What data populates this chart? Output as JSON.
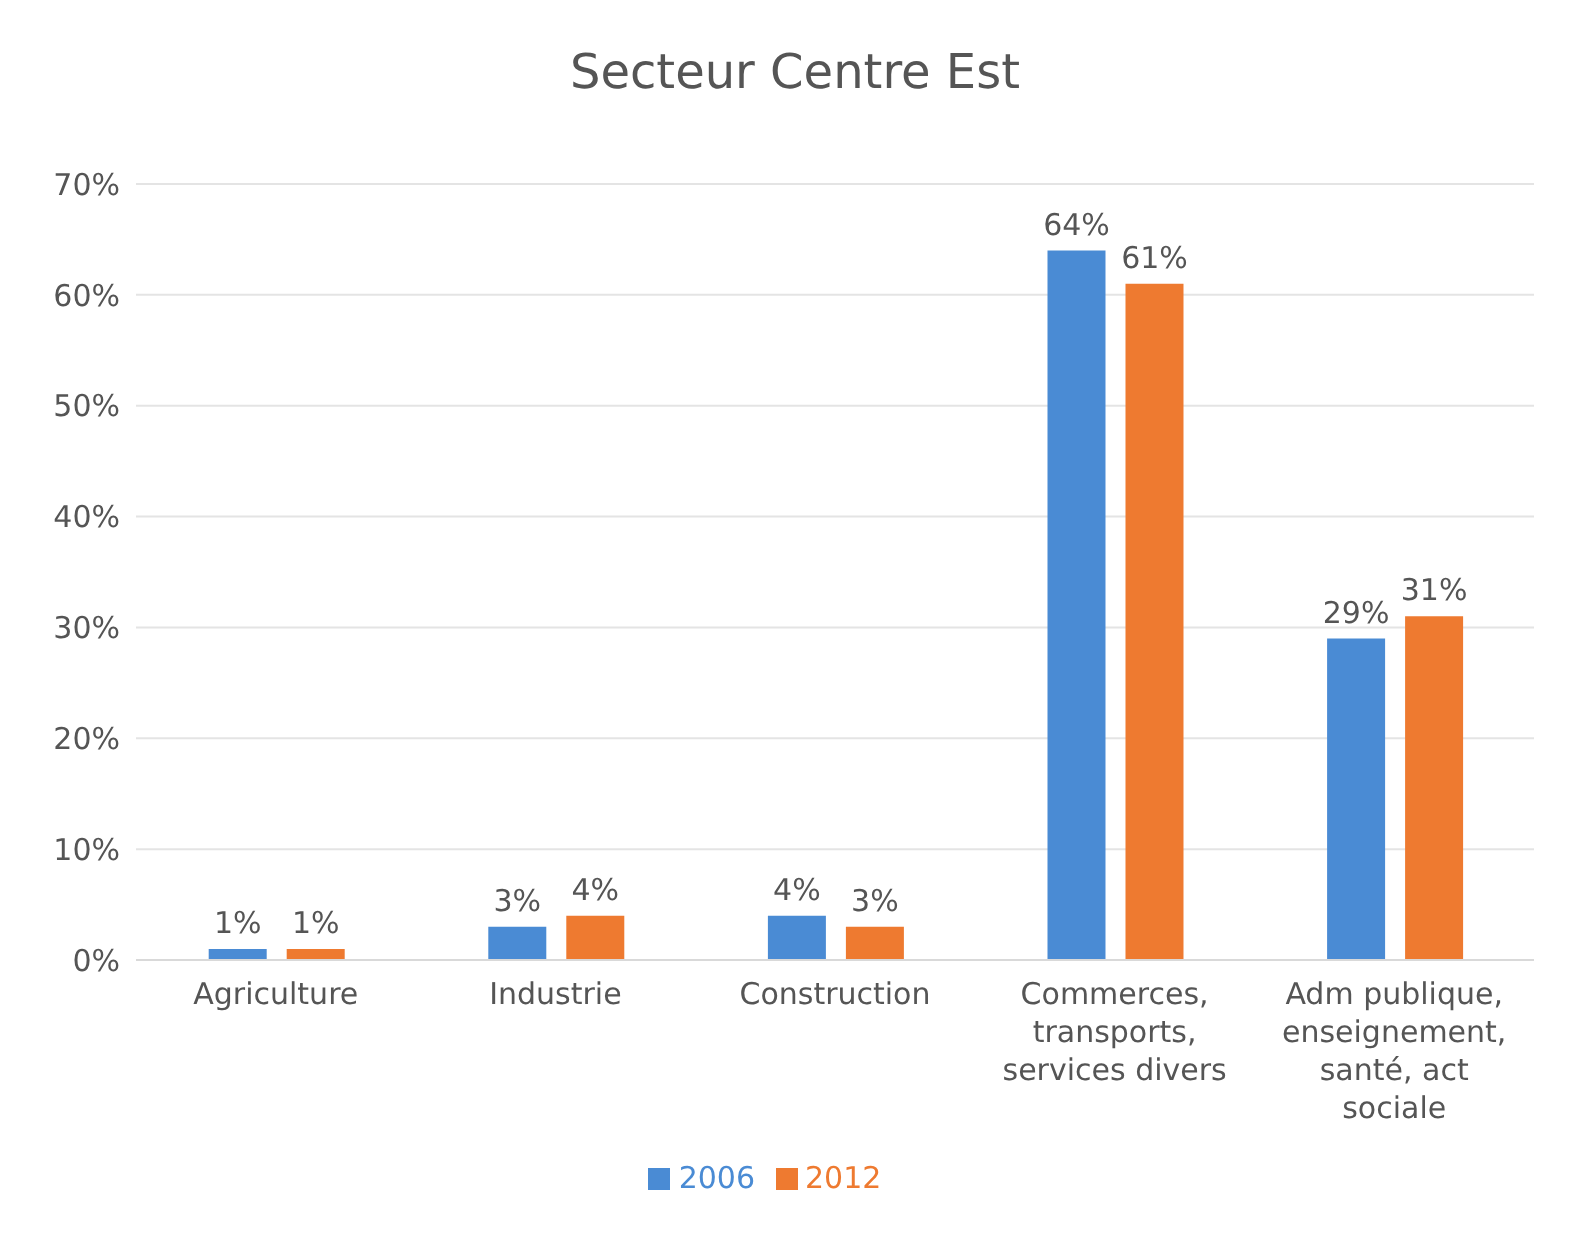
{
  "chart_data": {
    "type": "bar",
    "title": "Secteur Centre Est",
    "categories": [
      "Agriculture",
      "Industrie",
      "Construction",
      "Commerces, transports, services divers",
      "Adm publique, enseignement, santé, act sociale"
    ],
    "series": [
      {
        "name": "2006",
        "color": "#4a8bd4",
        "values": [
          1,
          3,
          4,
          64,
          29
        ],
        "value_labels": [
          "1%",
          "3%",
          "4%",
          "64%",
          "29%"
        ]
      },
      {
        "name": "2012",
        "color": "#ee7a30",
        "values": [
          1,
          4,
          3,
          61,
          31
        ],
        "value_labels": [
          "1%",
          "4%",
          "3%",
          "61%",
          "31%"
        ]
      }
    ],
    "ylim": [
      0,
      70
    ],
    "yticks": [
      {
        "value": 0,
        "label": "0%"
      },
      {
        "value": 10,
        "label": "10%"
      },
      {
        "value": 20,
        "label": "20%"
      },
      {
        "value": 30,
        "label": "30%"
      },
      {
        "value": 40,
        "label": "40%"
      },
      {
        "value": 50,
        "label": "50%"
      },
      {
        "value": 60,
        "label": "60%"
      },
      {
        "value": 70,
        "label": "70%"
      }
    ],
    "grid": "y",
    "legend": "bottom"
  }
}
